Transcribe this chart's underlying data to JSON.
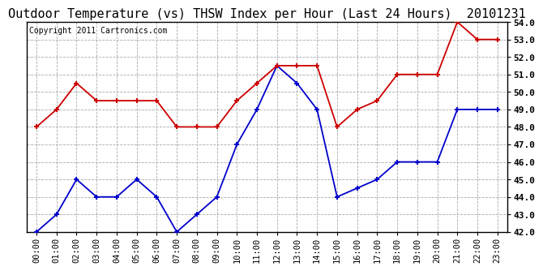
{
  "title": "Outdoor Temperature (vs) THSW Index per Hour (Last 24 Hours)  20101231",
  "copyright": "Copyright 2011 Cartronics.com",
  "hours": [
    "00:00",
    "01:00",
    "02:00",
    "03:00",
    "04:00",
    "05:00",
    "06:00",
    "07:00",
    "08:00",
    "09:00",
    "10:00",
    "11:00",
    "12:00",
    "13:00",
    "14:00",
    "15:00",
    "16:00",
    "17:00",
    "18:00",
    "19:00",
    "20:00",
    "21:00",
    "22:00",
    "23:00"
  ],
  "blue_data": [
    42.0,
    43.0,
    45.0,
    44.0,
    44.0,
    45.0,
    44.0,
    42.0,
    43.0,
    44.0,
    47.0,
    49.0,
    51.5,
    50.5,
    49.0,
    44.0,
    44.5,
    45.0,
    46.0,
    46.0,
    46.0,
    49.0,
    49.0,
    49.0
  ],
  "red_data": [
    48.0,
    49.0,
    50.5,
    49.5,
    49.5,
    49.5,
    49.5,
    48.0,
    48.0,
    48.0,
    49.5,
    50.5,
    51.5,
    51.5,
    51.5,
    48.0,
    49.0,
    49.5,
    51.0,
    51.0,
    51.0,
    54.0,
    53.0,
    53.0
  ],
  "blue_color": "#0000cc",
  "red_color": "#cc0000",
  "ylim_min": 42.0,
  "ylim_max": 54.0,
  "yticks": [
    42.0,
    43.0,
    44.0,
    45.0,
    46.0,
    47.0,
    48.0,
    49.0,
    50.0,
    51.0,
    52.0,
    53.0,
    54.0
  ],
  "bg_color": "#ffffff",
  "grid_color": "#aaaaaa",
  "title_fontsize": 11,
  "copyright_fontsize": 7,
  "tick_fontsize": 7.5,
  "ytick_fontsize": 8
}
